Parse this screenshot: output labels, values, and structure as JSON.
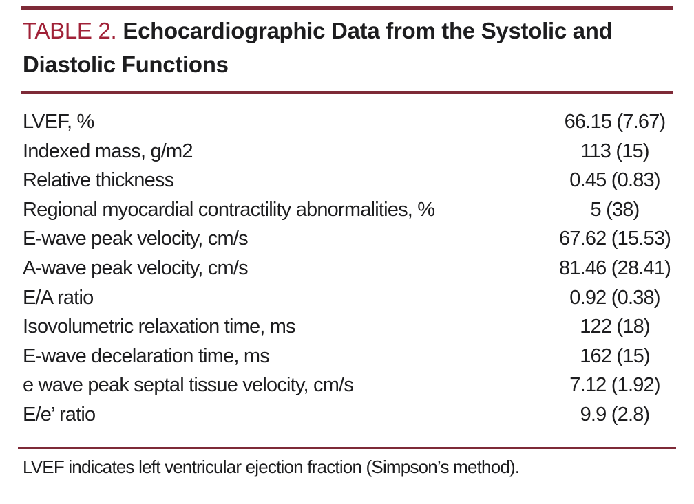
{
  "header": {
    "table_label": "TABLE 2.",
    "caption": "Echocardiographic Data from the Systolic and Diastolic Functions"
  },
  "colors": {
    "accent_red": "#a02137",
    "rule_maroon": "#7e2a37",
    "text_black": "#1d1d1f"
  },
  "table": {
    "rows": [
      {
        "label": "LVEF, %",
        "value": "66.15 (7.67)"
      },
      {
        "label": "Indexed mass, g/m2",
        "value": "113 (15)"
      },
      {
        "label": "Relative thickness",
        "value": "0.45 (0.83)"
      },
      {
        "label": "Regional myocardial contractility abnormalities, %",
        "value": "5 (38)"
      },
      {
        "label": "E-wave peak velocity, cm/s",
        "value": "67.62 (15.53)"
      },
      {
        "label": "A-wave peak velocity, cm/s",
        "value": "81.46 (28.41)"
      },
      {
        "label": "E/A ratio",
        "value": "0.92 (0.38)"
      },
      {
        "label": "Isovolumetric relaxation time, ms",
        "value": "122 (18)"
      },
      {
        "label": "E-wave decelaration time, ms",
        "value": "162 (15)"
      },
      {
        "label": "e wave peak septal tissue velocity, cm/s",
        "value": "7.12 (1.92)"
      },
      {
        "label": "E/e’ ratio",
        "value": "9.9 (2.8)"
      }
    ]
  },
  "footnote": {
    "text": "LVEF indicates left ventricular ejection fraction (Simpson’s method)."
  }
}
